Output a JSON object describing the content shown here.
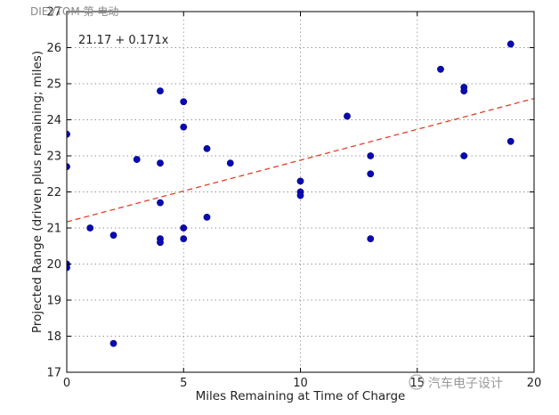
{
  "watermark_top": "DIEVTOM 第  电动",
  "watermark_bottom": "汽车电子设计",
  "chart_data": {
    "type": "scatter",
    "title": "",
    "xlabel": "Miles Remaining at Time of Charge",
    "ylabel": "Projected Range (driven plus remaining; miles)",
    "xlim": [
      0,
      20
    ],
    "ylim": [
      17,
      27
    ],
    "xticks": [
      0,
      5,
      10,
      15,
      20
    ],
    "yticks": [
      17,
      18,
      19,
      20,
      21,
      22,
      23,
      24,
      25,
      26,
      27
    ],
    "grid": true,
    "point_color": "#0a0ab4",
    "fit_color": "#e0402a",
    "annotation": "21.17 + 0.171x",
    "fit": {
      "intercept": 21.17,
      "slope": 0.171
    },
    "x": [
      0,
      0,
      0,
      0,
      1,
      2,
      2,
      3,
      4,
      4,
      4,
      4,
      4,
      5,
      5,
      5,
      5,
      6,
      6,
      7,
      10,
      10,
      10,
      12,
      13,
      13,
      13,
      16,
      17,
      17,
      17,
      19,
      19
    ],
    "y": [
      23.6,
      22.7,
      20.0,
      19.9,
      21.0,
      20.8,
      17.8,
      22.9,
      24.8,
      22.8,
      21.7,
      20.7,
      20.6,
      24.5,
      23.8,
      21.0,
      20.7,
      23.2,
      21.3,
      22.8,
      22.3,
      22.0,
      21.9,
      24.1,
      23.0,
      22.5,
      20.7,
      25.4,
      24.9,
      24.8,
      23.0,
      26.1,
      23.4
    ]
  }
}
